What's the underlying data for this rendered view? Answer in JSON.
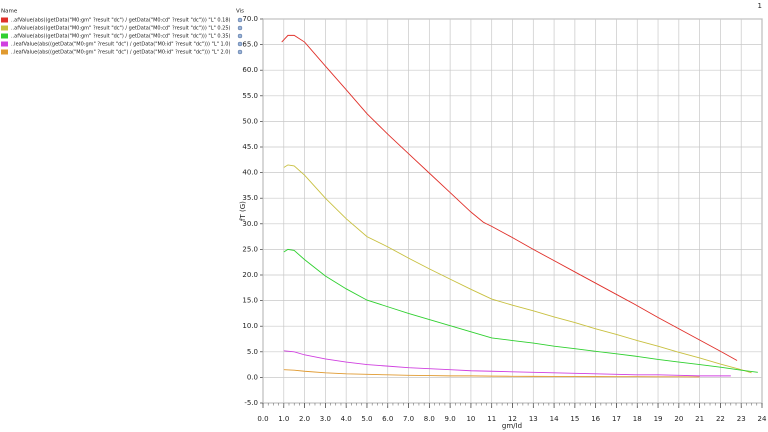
{
  "chart_data": {
    "type": "line",
    "plot_index": "1",
    "legend_header": {
      "name": "Name",
      "vis": "Vis"
    },
    "xlabel": "gm/Id",
    "ylabel": "fT (G)",
    "xlim": [
      0,
      24
    ],
    "ylim": [
      -5,
      70
    ],
    "grid": true,
    "xticks": [
      {
        "value": 0,
        "label": "0.0"
      },
      {
        "value": 1,
        "label": "1.0"
      },
      {
        "value": 2,
        "label": "2.0"
      },
      {
        "value": 3,
        "label": "3.0"
      },
      {
        "value": 4,
        "label": "4.0"
      },
      {
        "value": 5,
        "label": "5.0"
      },
      {
        "value": 6,
        "label": "6.0"
      },
      {
        "value": 7,
        "label": "7.0"
      },
      {
        "value": 8,
        "label": "8.0"
      },
      {
        "value": 9,
        "label": "9.0"
      },
      10,
      11,
      12,
      13,
      14,
      15,
      16,
      17,
      18,
      19,
      20,
      21,
      22,
      23,
      24
    ],
    "yticks": [
      {
        "value": -5,
        "label": "-5.0"
      },
      {
        "value": 0,
        "label": "0.0"
      },
      {
        "value": 5,
        "label": "5.0"
      },
      {
        "value": 10,
        "label": "10.0"
      },
      {
        "value": 15,
        "label": "15.0"
      },
      {
        "value": 20,
        "label": "20.0"
      },
      {
        "value": 25,
        "label": "25.0"
      },
      {
        "value": 30,
        "label": "30.0"
      },
      {
        "value": 35,
        "label": "35.0"
      },
      {
        "value": 40,
        "label": "40.0"
      },
      {
        "value": 45,
        "label": "45.0"
      },
      {
        "value": 50,
        "label": "50.0"
      },
      {
        "value": 55,
        "label": "55.0"
      },
      {
        "value": 60,
        "label": "60.0"
      },
      {
        "value": 65,
        "label": "65.0"
      },
      {
        "value": 70,
        "label": "70.0"
      }
    ],
    "series": [
      {
        "name": "..afValue(abs((getData(\"M0:gm\" ?result \"dc\") / getData(\"M0:cd\" ?result \"dc\"))) \"L\" 0.18)",
        "color": "#e0302a",
        "x": [
          0.9,
          1.2,
          1.5,
          2,
          3,
          4,
          5,
          6,
          7,
          8,
          9,
          10,
          10.6,
          11,
          12,
          13,
          14,
          15,
          16,
          17,
          18,
          19,
          20,
          21,
          22,
          22.8
        ],
        "values": [
          65.5,
          66.8,
          66.8,
          65.5,
          60.8,
          56.2,
          51.5,
          47.5,
          43.7,
          39.9,
          36.1,
          32.3,
          30.3,
          29.5,
          27.3,
          25,
          22.8,
          20.6,
          18.4,
          16.2,
          14,
          11.7,
          9.5,
          7.3,
          5.1,
          3.3
        ]
      },
      {
        "name": "..afValue(abs((getData(\"M0:gm\" ?result \"dc\") / getData(\"M0:cd\" ?result \"dc\"))) \"L\" 0.25)",
        "color": "#c8c040",
        "x": [
          1,
          1.2,
          1.5,
          2,
          3,
          4,
          5,
          6,
          7,
          8,
          9,
          10,
          11,
          12,
          13,
          14,
          15,
          16,
          17,
          18,
          19,
          20,
          21,
          22,
          23,
          23.5
        ],
        "values": [
          41,
          41.5,
          41.3,
          39.5,
          35,
          31,
          27.5,
          25.5,
          23.3,
          21.2,
          19.2,
          17.2,
          15.3,
          14.1,
          13,
          11.8,
          10.7,
          9.5,
          8.4,
          7.2,
          6.1,
          4.9,
          3.8,
          2.6,
          1.5,
          0.9
        ]
      },
      {
        "name": "..afValue(abs((getData(\"M0:gm\" ?result \"dc\") / getData(\"M0:cd\" ?result \"dc\"))) \"L\" 0.35)",
        "color": "#30d030",
        "x": [
          1,
          1.2,
          1.5,
          2,
          3,
          4,
          5,
          6,
          7,
          8,
          9,
          10,
          11,
          12,
          13,
          14,
          15,
          16,
          17,
          18,
          19,
          20,
          21,
          22,
          23,
          23.8
        ],
        "values": [
          24.5,
          25,
          24.8,
          23,
          19.8,
          17.3,
          15.1,
          13.8,
          12.5,
          11.3,
          10.1,
          8.9,
          7.7,
          7.2,
          6.7,
          6.1,
          5.6,
          5.1,
          4.6,
          4.1,
          3.5,
          3,
          2.5,
          2,
          1.4,
          1
        ]
      },
      {
        "name": "..leafValue(abs((getData(\"M0:gm\" ?result \"dc\") / getData(\"M0:id\" ?result \"dc\"))) \"L\" 1.0)",
        "color": "#d040e0",
        "x": [
          1,
          1.5,
          2,
          3,
          4,
          5,
          6,
          7,
          8,
          9,
          10,
          11,
          12,
          13,
          14,
          15,
          16,
          17,
          18,
          19,
          20,
          21,
          22,
          22.5
        ],
        "values": [
          5.2,
          5,
          4.4,
          3.6,
          3,
          2.5,
          2.2,
          1.9,
          1.7,
          1.5,
          1.3,
          1.2,
          1.1,
          1,
          0.9,
          0.8,
          0.7,
          0.6,
          0.5,
          0.5,
          0.4,
          0.3,
          0.3,
          0.3
        ]
      },
      {
        "name": "..leafValue(abs((getData(\"M0:gm\" ?result \"dc\") / getData(\"M0:id\" ?result \"dc\"))) \"L\" 2.0)",
        "color": "#e09a30",
        "x": [
          1,
          1.5,
          2,
          3,
          4,
          5,
          6,
          7,
          8,
          9,
          10,
          11,
          12,
          13,
          14,
          15,
          16,
          17,
          18,
          19,
          20,
          21
        ],
        "values": [
          1.5,
          1.4,
          1.2,
          0.9,
          0.7,
          0.6,
          0.5,
          0.4,
          0.35,
          0.3,
          0.3,
          0.25,
          0.22,
          0.2,
          0.18,
          0.16,
          0.15,
          0.14,
          0.13,
          0.12,
          0.11,
          0.1
        ]
      }
    ]
  }
}
